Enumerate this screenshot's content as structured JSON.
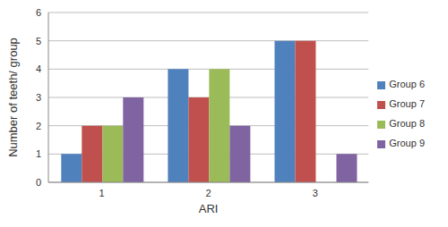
{
  "chart_data": {
    "type": "bar",
    "x_label": "ARI",
    "y_label": "Number of teeth/ group",
    "categories": [
      "1",
      "2",
      "3"
    ],
    "series": [
      {
        "name": "Group 6",
        "color": "#4f81bd",
        "values": [
          1,
          4,
          5
        ]
      },
      {
        "name": "Group 7",
        "color": "#c0504d",
        "values": [
          2,
          3,
          5
        ]
      },
      {
        "name": "Group 8",
        "color": "#9bbb59",
        "values": [
          2,
          4,
          0
        ]
      },
      {
        "name": "Group 9",
        "color": "#8064a2",
        "values": [
          3,
          2,
          1
        ]
      }
    ],
    "ylim": [
      0,
      6
    ],
    "yticks": [
      0,
      1,
      2,
      3,
      4,
      5,
      6
    ],
    "grid": true,
    "legend": "right"
  }
}
